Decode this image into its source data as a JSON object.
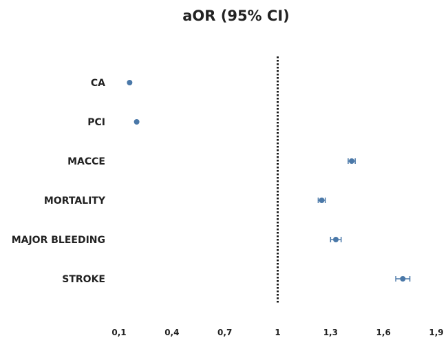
{
  "chart_data": {
    "type": "scatter",
    "title": "aOR (95% CI)",
    "xlabel": "",
    "ylabel": "",
    "xlim": [
      0.1,
      1.9
    ],
    "x_ticks": [
      "0,1",
      "0,4",
      "0,7",
      "1",
      "1,3",
      "1,6",
      "1,9"
    ],
    "reference_line": 1,
    "grid": false,
    "point_color": "#4a78a8",
    "series": [
      {
        "categories": [
          "CA",
          "PCI",
          "MACCE",
          "MORTALITY",
          "MAJOR BLEEDING",
          "STROKE"
        ],
        "values": [
          0.16,
          0.2,
          1.42,
          1.25,
          1.33,
          1.71
        ],
        "ci_low": [
          0.16,
          0.2,
          1.4,
          1.23,
          1.3,
          1.67
        ],
        "ci_high": [
          0.16,
          0.2,
          1.44,
          1.27,
          1.36,
          1.75
        ]
      }
    ]
  }
}
